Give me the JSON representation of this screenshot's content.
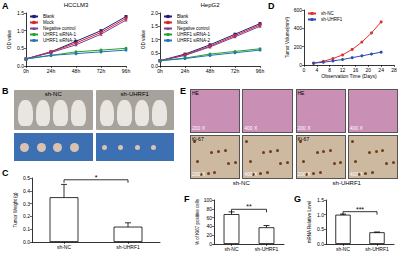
{
  "chart_data": [
    {
      "panel": "A",
      "type": "line",
      "title": "HCCLM3",
      "y_label": "OD value",
      "categories": [
        "0h",
        "24h",
        "48h",
        "72h",
        "96h"
      ],
      "series": [
        {
          "name": "Blank",
          "color": "#1f1f7a",
          "marker": "square",
          "values": [
            0.2,
            0.4,
            0.7,
            1.0,
            1.4
          ]
        },
        {
          "name": "Mock",
          "color": "#d62728",
          "marker": "square",
          "values": [
            0.2,
            0.4,
            0.65,
            0.95,
            1.35
          ]
        },
        {
          "name": "Negative control",
          "color": "#7b3fa0",
          "marker": "triangle",
          "values": [
            0.2,
            0.38,
            0.6,
            0.9,
            1.3
          ]
        },
        {
          "name": "UHRF1 siRNA-1",
          "color": "#2ca02c",
          "marker": "circle",
          "values": [
            0.2,
            0.3,
            0.4,
            0.45,
            0.5
          ]
        },
        {
          "name": "UHRF1 siRNA-2",
          "color": "#1f77b4",
          "marker": "circle",
          "values": [
            0.2,
            0.3,
            0.35,
            0.4,
            0.45
          ]
        }
      ],
      "ylim": [
        0,
        1.5
      ],
      "yticks": [
        {
          "value": 0,
          "label": "0.0"
        },
        0.5,
        {
          "value": 1,
          "label": "1.0"
        },
        1.5
      ],
      "legend": "top-left"
    },
    {
      "type": "line",
      "title": "HepG2",
      "y_label": "OD value",
      "categories": [
        "0h",
        "24h",
        "48h",
        "72h",
        "96h"
      ],
      "series": [
        {
          "name": "Blank",
          "color": "#1f1f7a",
          "marker": "square",
          "values": [
            0.2,
            0.45,
            0.8,
            1.2,
            1.6
          ]
        },
        {
          "name": "Mock",
          "color": "#d62728",
          "marker": "square",
          "values": [
            0.2,
            0.42,
            0.75,
            1.15,
            1.55
          ]
        },
        {
          "name": "Negative control",
          "color": "#7b3fa0",
          "marker": "triangle",
          "values": [
            0.2,
            0.4,
            0.72,
            1.1,
            1.5
          ]
        },
        {
          "name": "UHRF1 siRNA-1",
          "color": "#2ca02c",
          "marker": "circle",
          "values": [
            0.2,
            0.3,
            0.45,
            0.55,
            0.65
          ]
        },
        {
          "name": "UHRF1 siRNA-2",
          "color": "#1f77b4",
          "marker": "circle",
          "values": [
            0.2,
            0.28,
            0.4,
            0.5,
            0.6
          ]
        }
      ],
      "ylim": [
        0,
        2
      ],
      "yticks": [
        {
          "value": 0,
          "label": "0.0"
        },
        0.5,
        {
          "value": 1,
          "label": "1.0"
        },
        1.5,
        {
          "value": 2,
          "label": "2.0"
        }
      ],
      "legend": "top-left"
    },
    {
      "panel": "D",
      "type": "line",
      "x_label": "Observation Time (Days)",
      "y_label": "Tumor Volume(mm³)",
      "x": [
        3,
        6,
        9,
        12,
        15,
        18,
        21,
        24
      ],
      "series": [
        {
          "name": "sh-NC",
          "color": "#e03030",
          "marker": "circle",
          "values": [
            20,
            40,
            70,
            110,
            170,
            250,
            350,
            470
          ]
        },
        {
          "name": "sh-UHRF1",
          "color": "#2f4fb0",
          "marker": "circle",
          "values": [
            20,
            30,
            45,
            60,
            80,
            100,
            120,
            140
          ]
        }
      ],
      "xlim": [
        0,
        28
      ],
      "xticks": [
        0,
        4,
        8,
        12,
        16,
        20,
        24,
        28
      ],
      "ylim": [
        0,
        600
      ],
      "yticks": [
        0,
        200,
        400,
        600
      ],
      "legend": "top-left"
    },
    {
      "panel": "C",
      "type": "bar",
      "y_label": "Tumor Weight (g)",
      "categories": [
        "sh-NC",
        "sh-UHRF1"
      ],
      "values": [
        0.35,
        0.12
      ],
      "errors": [
        0.1,
        0.03
      ],
      "color": "#ffffff",
      "significance": "*",
      "ylim": [
        0,
        0.5
      ],
      "yticks": [
        {
          "value": 0,
          "label": "0.0"
        },
        0.1,
        0.2,
        0.3,
        0.4,
        0.5
      ]
    },
    {
      "panel": "F",
      "type": "bar",
      "y_label": "% of Ki67 positive cells",
      "categories": [
        "sh-NC",
        "sh-UHRF1"
      ],
      "values": [
        68,
        38
      ],
      "errors": [
        5,
        4
      ],
      "color": "#ffffff",
      "significance": "**",
      "ylim": [
        0,
        100
      ],
      "yticks": [
        0,
        20,
        40,
        60,
        80,
        100
      ]
    },
    {
      "panel": "G",
      "type": "bar",
      "y_label": "mRNA Relative Level",
      "categories": [
        "sh-NC",
        "sh-UHRF1"
      ],
      "values": [
        1.0,
        0.4
      ],
      "errors": [
        0.02,
        0.01
      ],
      "color": "#ffffff",
      "significance": "***",
      "ylim": [
        0,
        1.5
      ],
      "yticks": [
        {
          "value": 0,
          "label": "0.0"
        },
        0.5,
        {
          "value": 1,
          "label": "1.0"
        },
        1.5
      ]
    }
  ],
  "images": [
    {
      "panel": "B",
      "labels": [
        "sh-NC",
        "sh-UHRF1"
      ]
    },
    {
      "panel": "E",
      "rows": [
        "HE",
        "Ki-67"
      ],
      "columns": [
        "sh-NC",
        "sh-UHRF1"
      ],
      "magnifications": [
        "200 X",
        "400 X"
      ]
    }
  ]
}
